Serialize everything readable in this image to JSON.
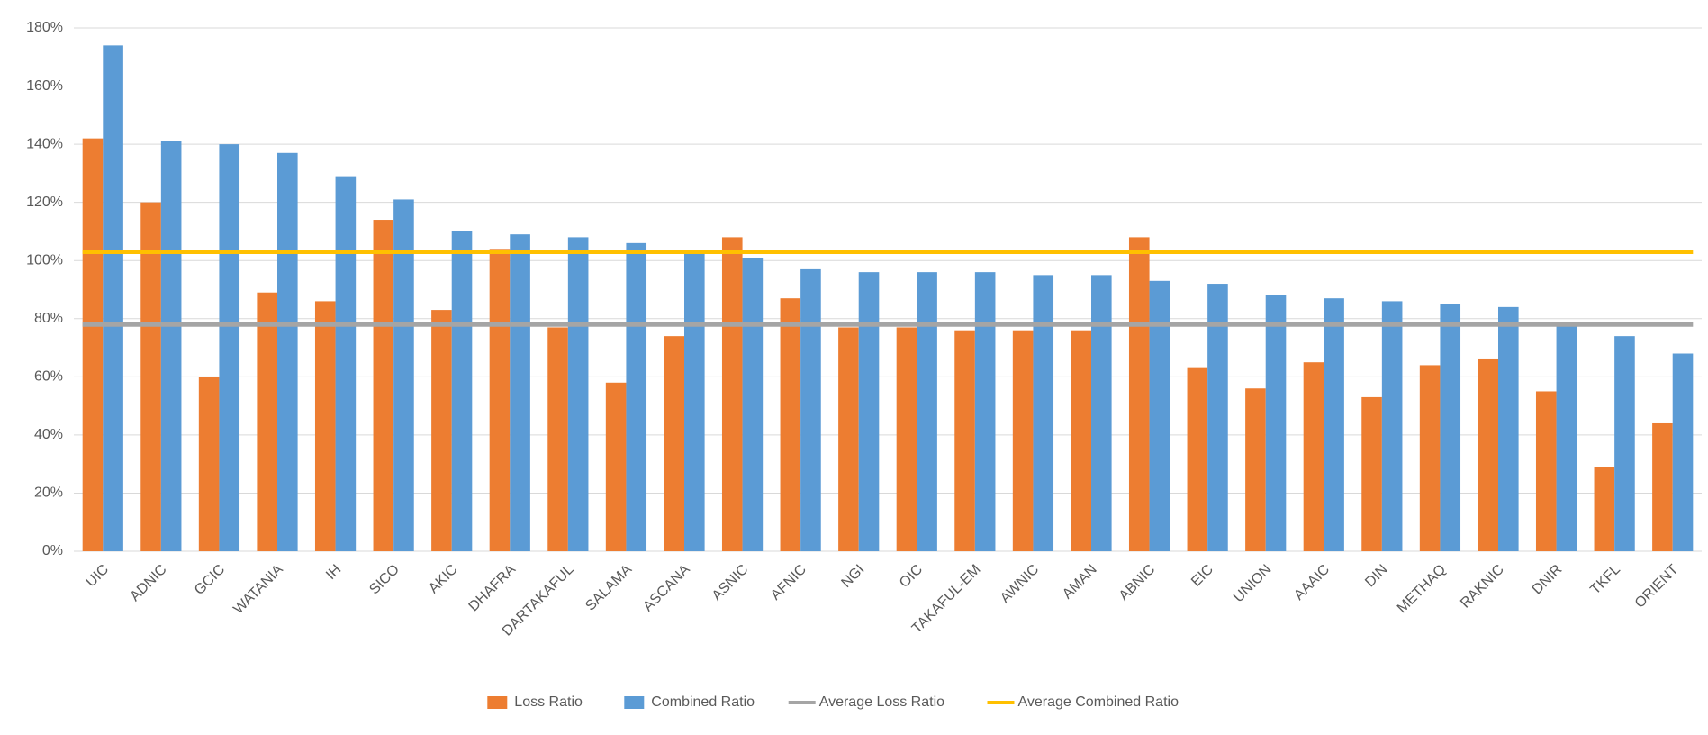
{
  "chart_data": {
    "type": "bar",
    "categories": [
      "UIC",
      "ADNIC",
      "GCIC",
      "WATANIA",
      "IH",
      "SICO",
      "AKIC",
      "DHAFRA",
      "DARTAKAFUL",
      "SALAMA",
      "ASCANA",
      "ASNIC",
      "AFNIC",
      "NGI",
      "OIC",
      "TAKAFUL-EM",
      "AWNIC",
      "AMAN",
      "ABNIC",
      "EIC",
      "UNION",
      "AAAIC",
      "DIN",
      "METHAQ",
      "RAKNIC",
      "DNIR",
      "TKFL",
      "ORIENT"
    ],
    "series": [
      {
        "name": "Loss Ratio",
        "color": "#ED7D31",
        "values": [
          142,
          120,
          60,
          89,
          86,
          114,
          83,
          104,
          77,
          58,
          74,
          108,
          87,
          77,
          77,
          76,
          76,
          76,
          108,
          63,
          56,
          65,
          53,
          64,
          66,
          55,
          29,
          44
        ]
      },
      {
        "name": "Combined Ratio",
        "color": "#5B9BD5",
        "values": [
          174,
          141,
          140,
          137,
          129,
          121,
          110,
          109,
          108,
          106,
          103,
          101,
          97,
          96,
          96,
          96,
          95,
          95,
          93,
          92,
          88,
          87,
          86,
          85,
          84,
          78,
          74,
          68
        ]
      }
    ],
    "lines": [
      {
        "name": "Average Loss Ratio",
        "color": "#A5A5A5",
        "value": 78
      },
      {
        "name": "Average Combined Ratio",
        "color": "#FFC000",
        "value": 103
      }
    ],
    "ylim": [
      0,
      180
    ],
    "yticks": [
      {
        "value": 0,
        "label": "0%"
      },
      {
        "value": 20,
        "label": "20%"
      },
      {
        "value": 40,
        "label": "40%"
      },
      {
        "value": 60,
        "label": "60%"
      },
      {
        "value": 80,
        "label": "80%"
      },
      {
        "value": 100,
        "label": "100%"
      },
      {
        "value": 120,
        "label": "120%"
      },
      {
        "value": 140,
        "label": "140%"
      },
      {
        "value": 160,
        "label": "160%"
      },
      {
        "value": 180,
        "label": "180%"
      }
    ],
    "grid": true
  }
}
